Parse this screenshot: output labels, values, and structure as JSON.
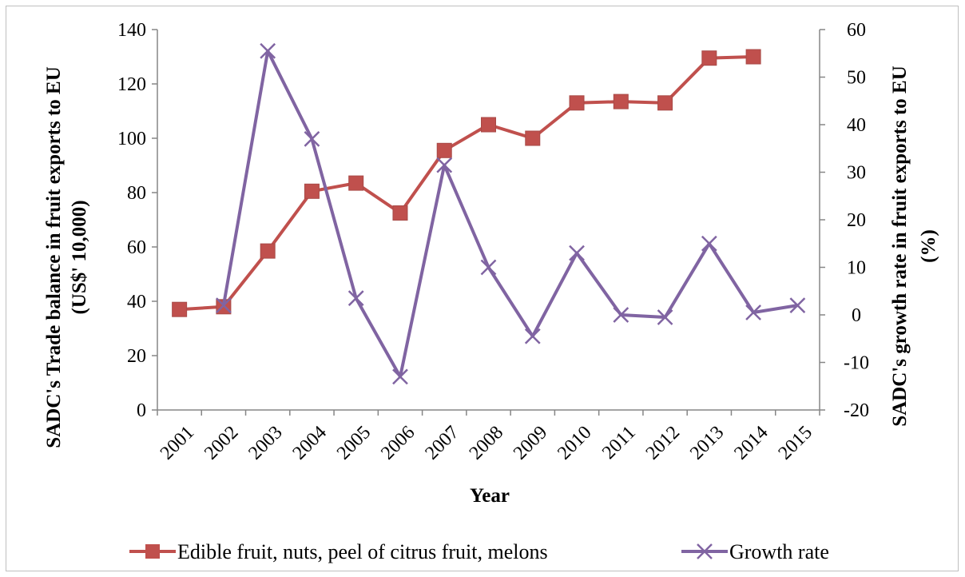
{
  "chart_data": {
    "type": "line",
    "xlabel": "Year",
    "ylabel": "SADC's Trade balance in fruit exports to EU",
    "ylabel_sub": "(US$' 10,000)",
    "y2label": "SADC's growth rate in fruit exports to EU",
    "y2label_sub": "(%)",
    "categories": [
      "2001",
      "2002",
      "2003",
      "2004",
      "2005",
      "2006",
      "2007",
      "2008",
      "2009",
      "2010",
      "2011",
      "2012",
      "2013",
      "2014",
      "2015"
    ],
    "ylim": [
      0,
      140
    ],
    "y_ticks": [
      0,
      20,
      40,
      60,
      80,
      100,
      120,
      140
    ],
    "y2lim": [
      -20,
      60
    ],
    "y2_ticks": [
      -20,
      -10,
      0,
      10,
      20,
      30,
      40,
      50,
      60
    ],
    "grid": false,
    "legend_position": "bottom",
    "series": [
      {
        "name": "Edible fruit, nuts, peel of citrus fruit, melons",
        "axis": "left",
        "marker": "square",
        "color": "#c0504d",
        "values": [
          37,
          38,
          58.5,
          80.5,
          83.5,
          72.5,
          95.5,
          105,
          100,
          113,
          113.5,
          113,
          129.5,
          130,
          null
        ]
      },
      {
        "name": "Growth rate",
        "axis": "right",
        "marker": "x",
        "color": "#8064a2",
        "values": [
          null,
          2,
          55.5,
          37,
          3.5,
          -13,
          31.5,
          10,
          -4.5,
          13,
          0,
          -0.5,
          15,
          0.5,
          2
        ]
      }
    ]
  }
}
